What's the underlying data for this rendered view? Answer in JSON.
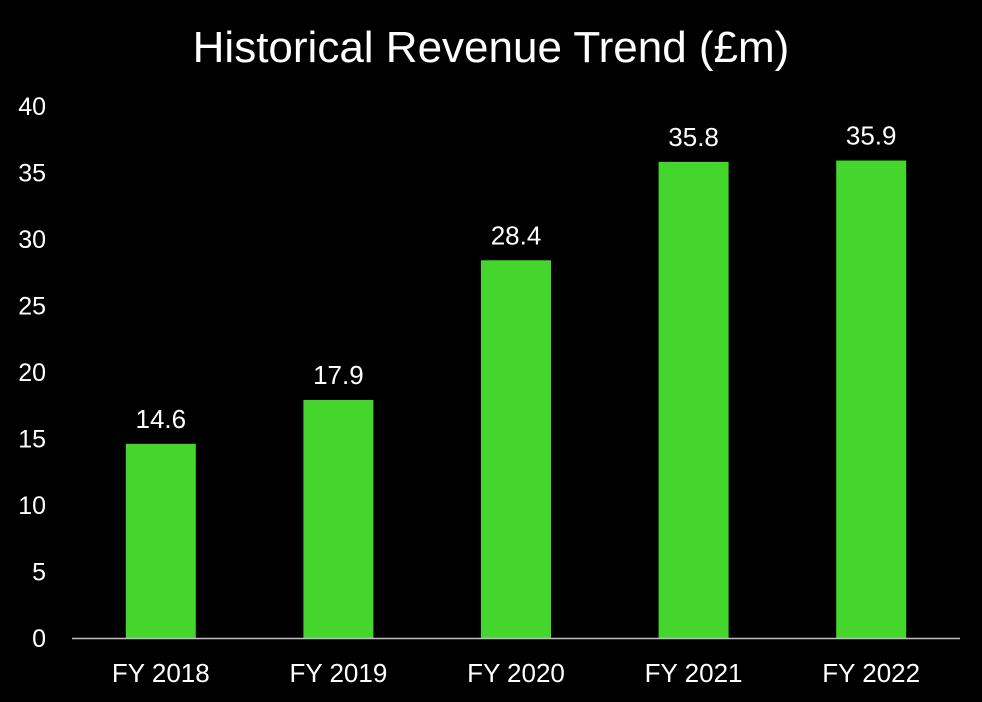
{
  "chart_data": {
    "type": "bar",
    "title": "Historical Revenue Trend (£m)",
    "xlabel": "",
    "ylabel": "",
    "categories": [
      "FY 2018",
      "FY 2019",
      "FY 2020",
      "FY 2021",
      "FY 2022"
    ],
    "values": [
      14.6,
      17.9,
      28.4,
      35.8,
      35.9
    ],
    "data_labels": [
      "14.6",
      "17.9",
      "28.4",
      "35.8",
      "35.9"
    ],
    "ylim": [
      0,
      40
    ],
    "yticks": [
      "0",
      "5",
      "10",
      "15",
      "20",
      "25",
      "30",
      "35",
      "40"
    ],
    "grid": false,
    "legend": "none",
    "colors": {
      "bar": "#44d62c",
      "background": "#000000",
      "text": "#ffffff",
      "axis": "#bfbfbf"
    }
  }
}
